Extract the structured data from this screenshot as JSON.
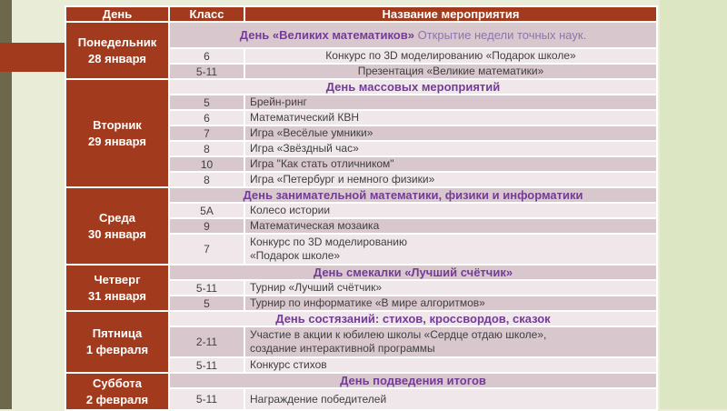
{
  "colors": {
    "accent_red": "#A23A1E",
    "purple_bold": "#733C97",
    "purple_light": "#8F74AC",
    "band_dark": "#D9C7CE",
    "band_light": "#EFE7EA",
    "background_cream": "#E9EDD8",
    "side_green": "#DDE6C3",
    "stripe_olive": "#6D674C",
    "body_text": "#3F3F3F"
  },
  "table": {
    "columns": [
      "День",
      "Класс",
      "Название мероприятия"
    ],
    "days": [
      {
        "day": "Понедельник",
        "date": "28 января",
        "theme_bold": "День «Великих математиков»",
        "theme_rest": "Открытие недели точных наук.",
        "events": [
          {
            "grade": "6",
            "title": "Конкурс по 3D моделированию «Подарок школе»"
          },
          {
            "grade": "5-11",
            "title": "Презентация «Великие математики»"
          }
        ]
      },
      {
        "day": "Вторник",
        "date": "29 января",
        "theme_bold": "День массовых мероприятий",
        "theme_rest": "",
        "events": [
          {
            "grade": "5",
            "title": "Брейн-ринг"
          },
          {
            "grade": "6",
            "title": "Математический КВН"
          },
          {
            "grade": "7",
            "title": "Игра «Весёлые умники»"
          },
          {
            "grade": "8",
            "title": "Игра «Звёздный час»"
          },
          {
            "grade": "10",
            "title": "Игра \"Как стать отличником\""
          },
          {
            "grade": "8",
            "title": "Игра «Петербург и немного физики»"
          }
        ]
      },
      {
        "day": "Среда",
        "date": "30 января",
        "theme_bold": "День занимательной математики, физики и информатики",
        "theme_rest": "",
        "events": [
          {
            "grade": "5А",
            "title": "Колесо истории"
          },
          {
            "grade": "9",
            "title": "Математическая мозаика"
          },
          {
            "grade": "7",
            "title": "Конкурс по 3D моделированию «Подарок школе»"
          }
        ]
      },
      {
        "day": "Четверг",
        "date": "31 января",
        "theme_bold": "День смекалки «Лучший счётчик»",
        "theme_rest": "",
        "events": [
          {
            "grade": "5-11",
            "title": "Турнир «Лучший счётчик»"
          },
          {
            "grade": "5",
            "title": "Турнир по информатике  «В мире алгоритмов»"
          }
        ]
      },
      {
        "day": "Пятница",
        "date": "1 февраля",
        "theme_bold": "День состязаний: стихов, кроссвордов, сказок",
        "theme_rest": "",
        "events": [
          {
            "grade": "2-11",
            "title": "Участие в акции к юбилею школы «Сердце отдаю школе», создание интерактивной программы"
          },
          {
            "grade": "5-11",
            "title": "Конкурс стихов"
          }
        ]
      },
      {
        "day": "Суббота",
        "date": "2 февраля",
        "theme_bold": "День подведения итогов",
        "theme_rest": "",
        "events": [
          {
            "grade": "5-11",
            "title": "Награждение победителей"
          }
        ]
      }
    ]
  }
}
